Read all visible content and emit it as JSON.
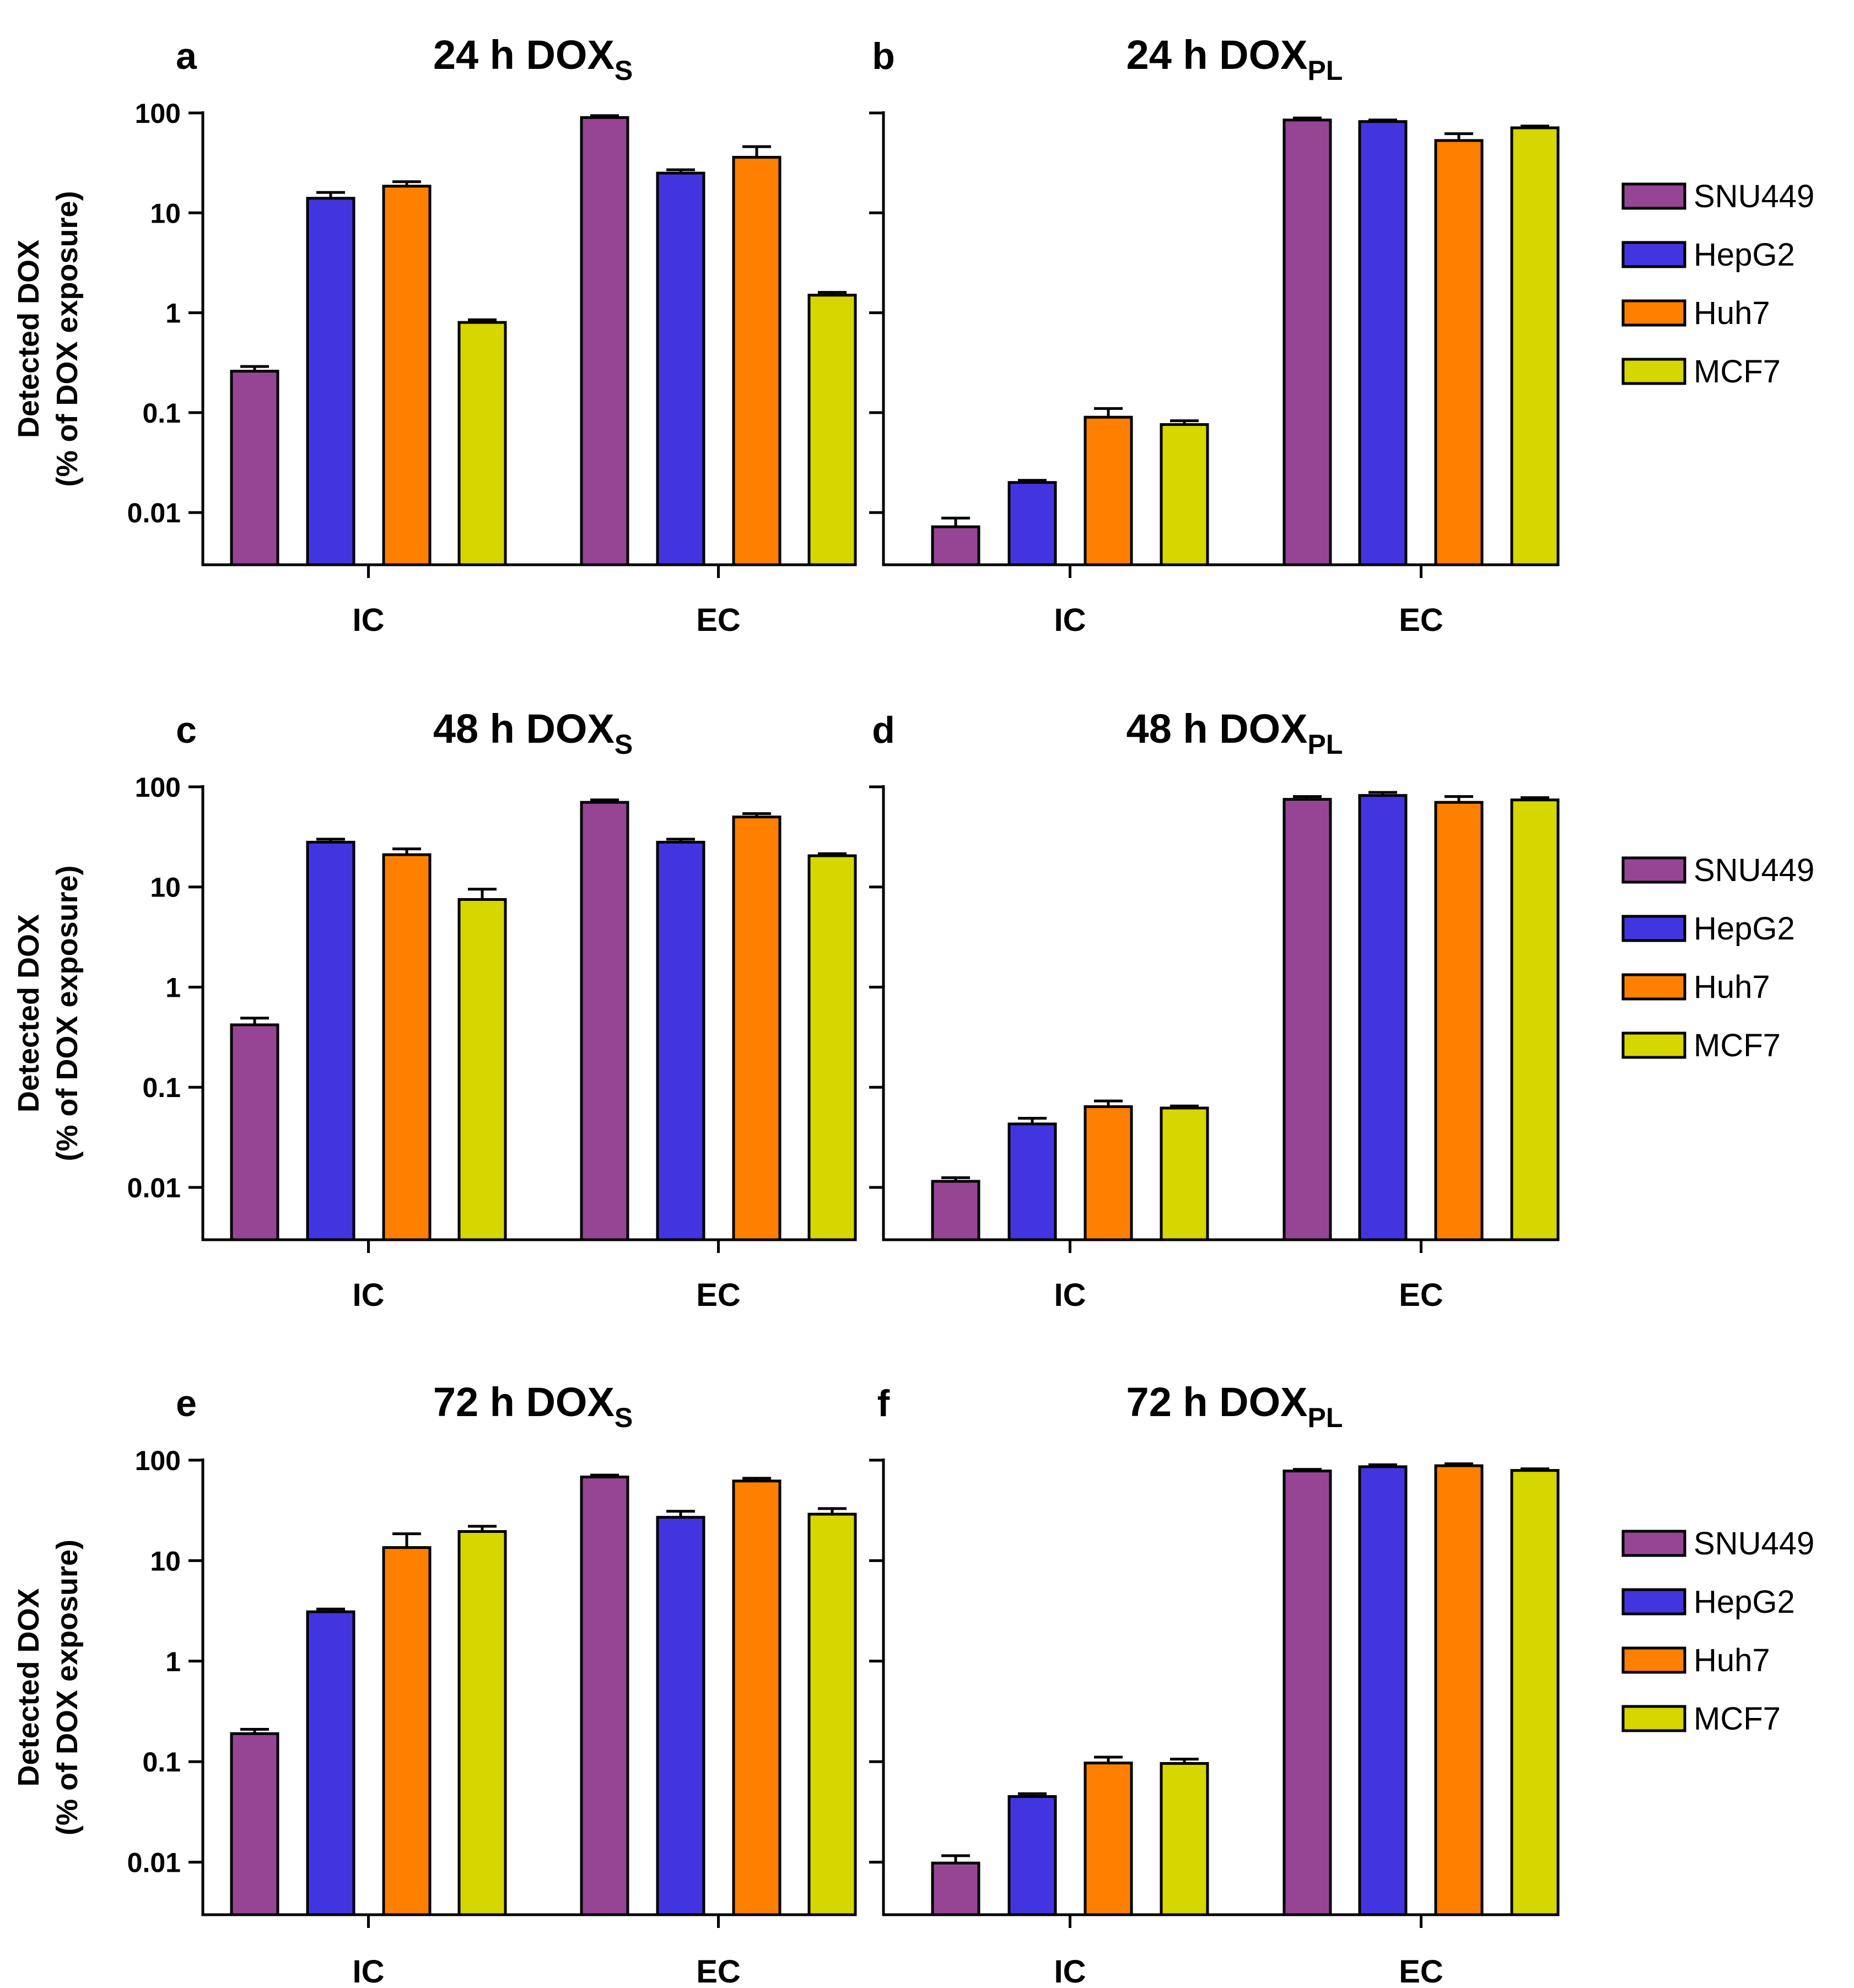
{
  "chart_data": {
    "type": "bar",
    "figure": "Detected DOX across cell lines",
    "yscale": "log",
    "ylim": [
      0.003,
      100
    ],
    "y_ticks": [
      "0.01",
      "0.1",
      "1",
      "10",
      "100"
    ],
    "ylabel_line1": "Detected DOX",
    "ylabel_line2": "(% of DOX exposure)",
    "categories": [
      "IC",
      "EC"
    ],
    "series_names": [
      "SNU449",
      "HepG2",
      "Huh7",
      "MCF7"
    ],
    "colors": [
      "#964595",
      "#4235E0",
      "#FF7F00",
      "#D6D600"
    ],
    "panels": [
      {
        "letter": "a",
        "title_main": "24 h DOX",
        "title_sub": "S",
        "values": [
          [
            0.26,
            90
          ],
          [
            14,
            25
          ],
          [
            18.5,
            36
          ],
          [
            0.8,
            1.5
          ]
        ],
        "errors": [
          [
            0.03,
            4
          ],
          [
            2,
            2
          ],
          [
            2,
            10
          ],
          [
            0.05,
            0.1
          ]
        ]
      },
      {
        "letter": "b",
        "title_main": "24 h DOX",
        "title_sub": "PL",
        "values": [
          [
            0.0072,
            85
          ],
          [
            0.02,
            82
          ],
          [
            0.09,
            53
          ],
          [
            0.076,
            71
          ]
        ],
        "errors": [
          [
            0.0016,
            4
          ],
          [
            0.001,
            3
          ],
          [
            0.02,
            9
          ],
          [
            0.007,
            3
          ]
        ]
      },
      {
        "letter": "c",
        "title_main": "48 h DOX",
        "title_sub": "S",
        "values": [
          [
            0.42,
            70
          ],
          [
            28,
            28
          ],
          [
            21,
            50
          ],
          [
            7.5,
            20.5
          ]
        ],
        "errors": [
          [
            0.07,
            4
          ],
          [
            2,
            2
          ],
          [
            3,
            4
          ],
          [
            2,
            1
          ]
        ]
      },
      {
        "letter": "d",
        "title_main": "48 h DOX",
        "title_sub": "PL",
        "values": [
          [
            0.0115,
            75
          ],
          [
            0.043,
            82
          ],
          [
            0.064,
            70
          ],
          [
            0.062,
            74
          ]
        ],
        "errors": [
          [
            0.001,
            5
          ],
          [
            0.006,
            6
          ],
          [
            0.009,
            10
          ],
          [
            0.003,
            4
          ]
        ]
      },
      {
        "letter": "e",
        "title_main": "72 h DOX",
        "title_sub": "S",
        "values": [
          [
            0.19,
            68
          ],
          [
            3.1,
            27
          ],
          [
            13.5,
            62
          ],
          [
            19.5,
            29
          ]
        ],
        "errors": [
          [
            0.02,
            3
          ],
          [
            0.2,
            4
          ],
          [
            5,
            4
          ],
          [
            2.5,
            4
          ]
        ]
      },
      {
        "letter": "f",
        "title_main": "72 h DOX",
        "title_sub": "PL",
        "values": [
          [
            0.0098,
            78
          ],
          [
            0.045,
            86
          ],
          [
            0.097,
            88
          ],
          [
            0.096,
            79
          ]
        ],
        "errors": [
          [
            0.0018,
            3
          ],
          [
            0.003,
            4
          ],
          [
            0.014,
            4
          ],
          [
            0.01,
            3
          ]
        ]
      }
    ]
  }
}
